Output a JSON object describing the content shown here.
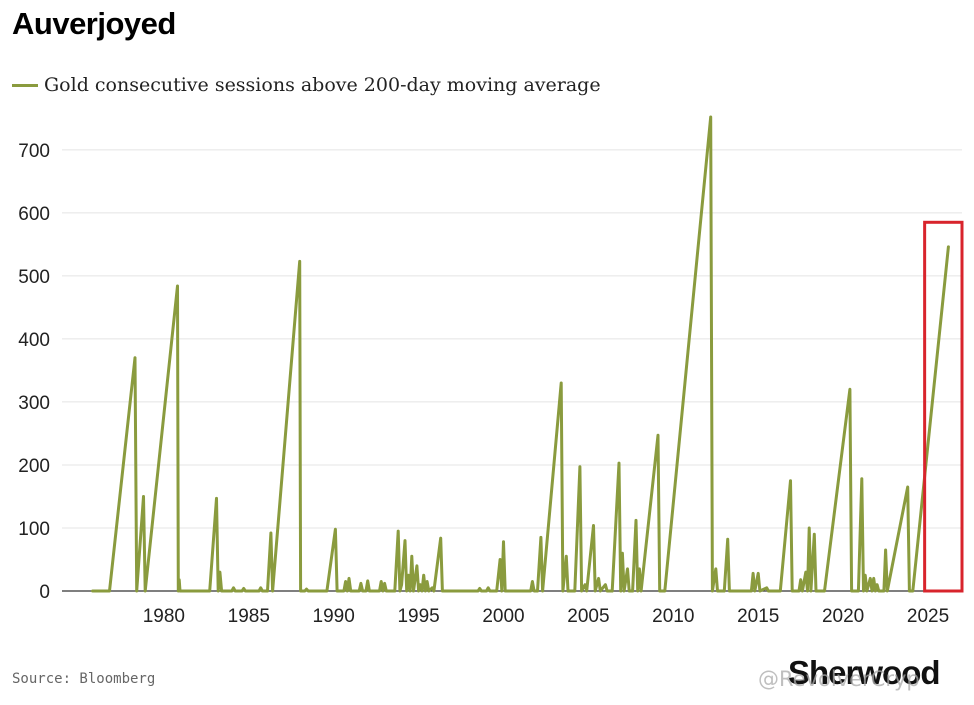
{
  "chart_data": {
    "type": "line",
    "title": "Auverjoyed",
    "series": [
      {
        "name": "Gold consecutive sessions above 200-day moving average",
        "color": "#8a9b3e",
        "points": [
          [
            1975.8,
            0
          ],
          [
            1976.8,
            0
          ],
          [
            1978.3,
            370
          ],
          [
            1978.4,
            0
          ],
          [
            1978.8,
            150
          ],
          [
            1978.9,
            0
          ],
          [
            1980.8,
            484
          ],
          [
            1980.85,
            0
          ],
          [
            1980.9,
            18
          ],
          [
            1980.95,
            0
          ],
          [
            1982.7,
            0
          ],
          [
            1983.1,
            147
          ],
          [
            1983.2,
            0
          ],
          [
            1983.3,
            30
          ],
          [
            1983.4,
            0
          ],
          [
            1984.0,
            0
          ],
          [
            1984.1,
            5
          ],
          [
            1984.2,
            0
          ],
          [
            1984.6,
            0
          ],
          [
            1984.7,
            4
          ],
          [
            1984.8,
            0
          ],
          [
            1985.6,
            0
          ],
          [
            1985.7,
            5
          ],
          [
            1985.8,
            0
          ],
          [
            1986.1,
            0
          ],
          [
            1986.3,
            92
          ],
          [
            1986.4,
            0
          ],
          [
            1988.0,
            523
          ],
          [
            1988.05,
            0
          ],
          [
            1988.3,
            0
          ],
          [
            1988.4,
            3
          ],
          [
            1988.5,
            0
          ],
          [
            1989.6,
            0
          ],
          [
            1990.1,
            98
          ],
          [
            1990.2,
            0
          ],
          [
            1990.6,
            0
          ],
          [
            1990.7,
            15
          ],
          [
            1990.8,
            0
          ],
          [
            1990.9,
            20
          ],
          [
            1991.0,
            0
          ],
          [
            1991.5,
            0
          ],
          [
            1991.6,
            12
          ],
          [
            1991.7,
            0
          ],
          [
            1991.9,
            0
          ],
          [
            1992.0,
            16
          ],
          [
            1992.1,
            0
          ],
          [
            1992.7,
            0
          ],
          [
            1992.8,
            15
          ],
          [
            1992.9,
            0
          ],
          [
            1993.0,
            12
          ],
          [
            1993.1,
            0
          ],
          [
            1993.6,
            0
          ],
          [
            1993.8,
            95
          ],
          [
            1993.9,
            0
          ],
          [
            1994.0,
            10
          ],
          [
            1994.2,
            80
          ],
          [
            1994.3,
            0
          ],
          [
            1994.4,
            25
          ],
          [
            1994.5,
            0
          ],
          [
            1994.6,
            55
          ],
          [
            1994.7,
            0
          ],
          [
            1994.9,
            40
          ],
          [
            1995.0,
            0
          ],
          [
            1995.1,
            10
          ],
          [
            1995.2,
            0
          ],
          [
            1995.3,
            25
          ],
          [
            1995.4,
            0
          ],
          [
            1995.5,
            15
          ],
          [
            1995.6,
            0
          ],
          [
            1995.8,
            5
          ],
          [
            1995.9,
            0
          ],
          [
            1996.3,
            84
          ],
          [
            1996.4,
            0
          ],
          [
            1998.5,
            0
          ],
          [
            1998.6,
            4
          ],
          [
            1998.7,
            0
          ],
          [
            1999.0,
            0
          ],
          [
            1999.1,
            5
          ],
          [
            1999.2,
            0
          ],
          [
            1999.6,
            0
          ],
          [
            1999.8,
            50
          ],
          [
            1999.9,
            0
          ],
          [
            2000.0,
            78
          ],
          [
            2000.1,
            0
          ],
          [
            2001.6,
            0
          ],
          [
            2001.7,
            15
          ],
          [
            2001.8,
            0
          ],
          [
            2002.0,
            0
          ],
          [
            2002.2,
            85
          ],
          [
            2002.3,
            0
          ],
          [
            2003.4,
            330
          ],
          [
            2003.5,
            0
          ],
          [
            2003.7,
            55
          ],
          [
            2003.8,
            0
          ],
          [
            2004.2,
            0
          ],
          [
            2004.5,
            197
          ],
          [
            2004.6,
            0
          ],
          [
            2004.8,
            10
          ],
          [
            2004.9,
            0
          ],
          [
            2005.3,
            104
          ],
          [
            2005.4,
            0
          ],
          [
            2005.6,
            20
          ],
          [
            2005.7,
            0
          ],
          [
            2006.0,
            10
          ],
          [
            2006.1,
            0
          ],
          [
            2006.4,
            0
          ],
          [
            2006.8,
            203
          ],
          [
            2006.9,
            0
          ],
          [
            2007.0,
            60
          ],
          [
            2007.1,
            0
          ],
          [
            2007.3,
            35
          ],
          [
            2007.4,
            0
          ],
          [
            2007.6,
            0
          ],
          [
            2007.8,
            112
          ],
          [
            2007.9,
            0
          ],
          [
            2008.0,
            35
          ],
          [
            2008.1,
            0
          ],
          [
            2009.1,
            247
          ],
          [
            2009.2,
            0
          ],
          [
            2009.5,
            0
          ],
          [
            2012.2,
            752
          ],
          [
            2012.3,
            0
          ],
          [
            2012.5,
            35
          ],
          [
            2012.6,
            0
          ],
          [
            2013.0,
            0
          ],
          [
            2013.2,
            82
          ],
          [
            2013.3,
            0
          ],
          [
            2014.6,
            0
          ],
          [
            2014.7,
            28
          ],
          [
            2014.8,
            0
          ],
          [
            2015.0,
            28
          ],
          [
            2015.1,
            0
          ],
          [
            2015.5,
            5
          ],
          [
            2015.6,
            0
          ],
          [
            2016.3,
            0
          ],
          [
            2016.9,
            175
          ],
          [
            2017.0,
            0
          ],
          [
            2017.4,
            0
          ],
          [
            2017.5,
            18
          ],
          [
            2017.6,
            0
          ],
          [
            2017.8,
            30
          ],
          [
            2017.9,
            0
          ],
          [
            2018.0,
            100
          ],
          [
            2018.1,
            0
          ],
          [
            2018.3,
            90
          ],
          [
            2018.4,
            0
          ],
          [
            2018.9,
            0
          ],
          [
            2020.4,
            320
          ],
          [
            2020.5,
            0
          ],
          [
            2020.9,
            0
          ],
          [
            2021.1,
            178
          ],
          [
            2021.2,
            0
          ],
          [
            2021.3,
            25
          ],
          [
            2021.4,
            0
          ],
          [
            2021.6,
            20
          ],
          [
            2021.7,
            0
          ],
          [
            2021.8,
            20
          ],
          [
            2021.9,
            0
          ],
          [
            2022.0,
            10
          ],
          [
            2022.1,
            0
          ],
          [
            2022.4,
            0
          ],
          [
            2022.5,
            65
          ],
          [
            2022.6,
            0
          ],
          [
            2023.8,
            165
          ],
          [
            2023.9,
            0
          ],
          [
            2024.1,
            0
          ],
          [
            2026.2,
            546
          ]
        ]
      }
    ],
    "x_ticks": [
      1980,
      1985,
      1990,
      1995,
      2000,
      2005,
      2010,
      2015,
      2020,
      2025
    ],
    "y_ticks": [
      0,
      100,
      200,
      300,
      400,
      500,
      600,
      700
    ],
    "xlim": [
      1974.0,
      2027.0
    ],
    "ylim": [
      0,
      760
    ],
    "grid": "horizontal",
    "legend_position": "top-left",
    "highlight": {
      "x_range": [
        2024.8,
        2027.0
      ],
      "y_range": [
        0,
        585
      ],
      "color": "#d8242c"
    }
  },
  "footer": {
    "source": "Source: Bloomberg",
    "brand": "Sherwood",
    "watermark": "@RevolverCryp"
  }
}
